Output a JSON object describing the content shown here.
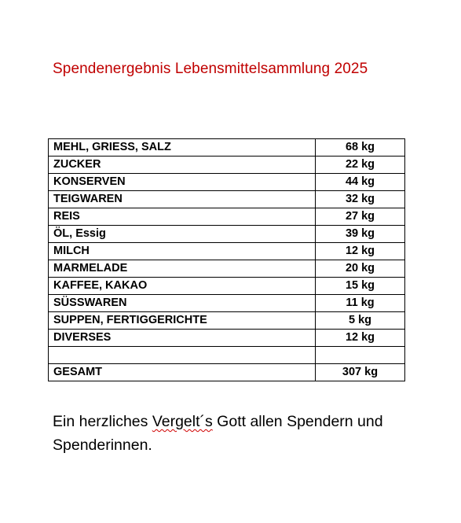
{
  "title": "Spendenergebnis Lebensmittelsammlung 2025",
  "rows": [
    {
      "item": "MEHL, GRIESS, SALZ",
      "amount": "68 kg"
    },
    {
      "item": "ZUCKER",
      "amount": "22 kg"
    },
    {
      "item": "KONSERVEN",
      "amount": "44 kg"
    },
    {
      "item": "TEIGWAREN",
      "amount": "32 kg"
    },
    {
      "item": "REIS",
      "amount": "27 kg"
    },
    {
      "item": "ÖL, Essig",
      "amount": "39 kg"
    },
    {
      "item": "MILCH",
      "amount": "12 kg"
    },
    {
      "item": "MARMELADE",
      "amount": "20 kg"
    },
    {
      "item": "KAFFEE, KAKAO",
      "amount": "15 kg"
    },
    {
      "item": "SÜSSWAREN",
      "amount": "11 kg"
    },
    {
      "item": "SUPPEN, FERTIGGERICHTE",
      "amount": "5 kg"
    },
    {
      "item": "DIVERSES",
      "amount": "12 kg"
    },
    {
      "item": "",
      "amount": ""
    },
    {
      "item": "GESAMT",
      "amount": "307 kg"
    }
  ],
  "closing": {
    "part1": "Ein herzliches ",
    "marked_word": "Vergelt´s",
    "part2": " Gott allen Spendern und Spenderinnen."
  },
  "colors": {
    "title": "#c00000",
    "spellcheck_underline": "#d00000"
  }
}
